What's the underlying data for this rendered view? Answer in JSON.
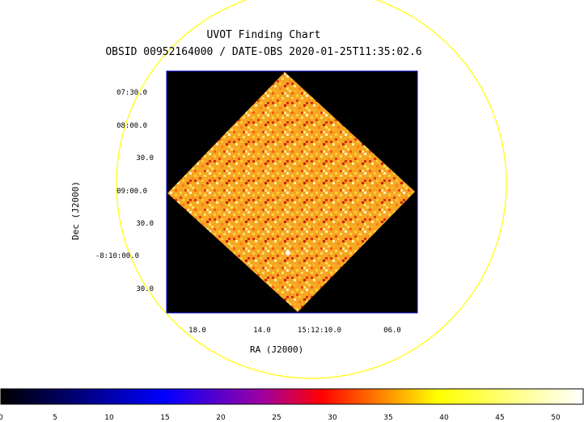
{
  "title": "UVOT Finding Chart",
  "subtitle": "OBSID 00952164000 / DATE-OBS 2020-01-25T11:35:02.6",
  "dec_axis": {
    "label": "Dec (J2000)",
    "ticks": [
      "07:30.0",
      "08:00.0",
      "30.0",
      "09:00.0",
      "30.0",
      "-8:10:00.0",
      "30.0"
    ]
  },
  "ra_axis": {
    "label": "RA (J2000)",
    "ticks": [
      "18.0",
      "14.0",
      "15:12:10.0",
      "06.0"
    ]
  },
  "colorbar": {
    "ticks": [
      "0",
      "5",
      "10",
      "15",
      "20",
      "25",
      "30",
      "35",
      "40",
      "45",
      "50"
    ],
    "range": [
      0,
      52
    ],
    "colors": [
      "#000000",
      "#0000ff",
      "#ff0000",
      "#ffff00",
      "#ffffff"
    ]
  },
  "colors": {
    "circle": "#ffff00",
    "frame": "#0000cc",
    "image_bg": "#000000"
  }
}
